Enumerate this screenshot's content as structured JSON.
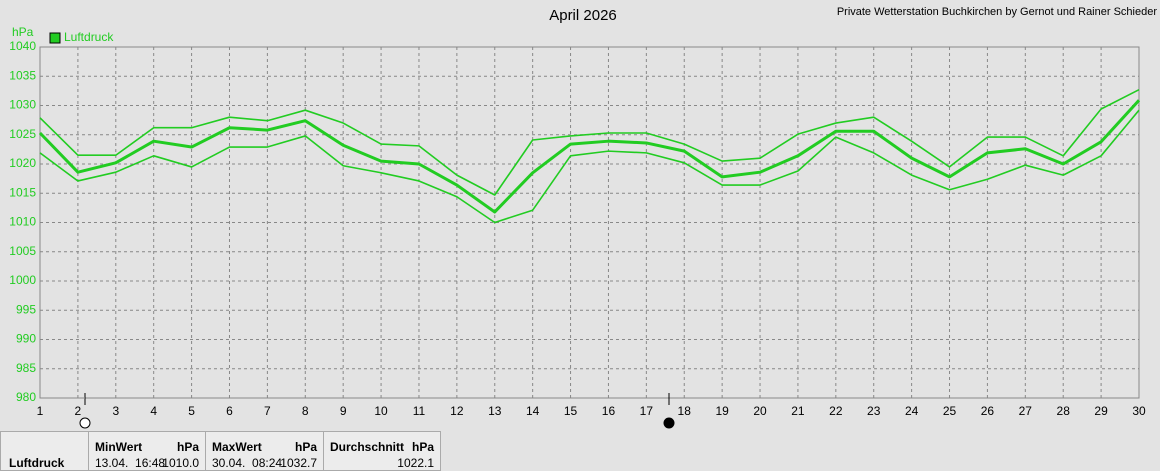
{
  "chart_data": {
    "type": "line",
    "title": "April 2026",
    "subtitle": "Private Wetterstation Buchkirchen by Gernot und Rainer Schieder",
    "y_label": "hPa",
    "x": [
      1,
      2,
      3,
      4,
      5,
      6,
      7,
      8,
      9,
      10,
      11,
      12,
      13,
      14,
      15,
      16,
      17,
      18,
      19,
      20,
      21,
      22,
      23,
      24,
      25,
      26,
      27,
      28,
      29,
      30
    ],
    "xlim": [
      1,
      30
    ],
    "xticks": [
      1,
      2,
      3,
      4,
      5,
      6,
      7,
      8,
      9,
      10,
      11,
      12,
      13,
      14,
      15,
      16,
      17,
      18,
      19,
      20,
      21,
      22,
      23,
      24,
      25,
      26,
      27,
      28,
      29,
      30
    ],
    "ylim": [
      980,
      1040
    ],
    "yticks": [
      980,
      985,
      990,
      995,
      1000,
      1005,
      1010,
      1015,
      1020,
      1025,
      1030,
      1035,
      1040
    ],
    "grid": true,
    "legend": "top-left",
    "series": [
      {
        "color": "#22cc22",
        "values": [
          1027.9,
          1021.5,
          1021.5,
          1026.2,
          1026.2,
          1028.0,
          1027.4,
          1029.2,
          1027.0,
          1023.4,
          1023.1,
          1018.1,
          1014.7,
          1024.1,
          1024.8,
          1025.3,
          1025.3,
          1023.4,
          1020.5,
          1021.0,
          1025.1,
          1027.0,
          1028.0,
          1023.9,
          1019.5,
          1024.6,
          1024.6,
          1021.4,
          1029.4,
          1032.7
        ]
      },
      {
        "name": "Luftdruck",
        "color": "#22cc22",
        "values": [
          1025.3,
          1018.6,
          1020.2,
          1023.9,
          1022.9,
          1026.2,
          1025.8,
          1027.4,
          1023.2,
          1020.5,
          1020.0,
          1016.4,
          1011.8,
          1018.5,
          1023.4,
          1023.9,
          1023.6,
          1022.2,
          1017.8,
          1018.6,
          1021.4,
          1025.6,
          1025.6,
          1021.0,
          1017.8,
          1021.9,
          1022.6,
          1020.0,
          1023.8,
          1030.9
        ]
      },
      {
        "color": "#22cc22",
        "values": [
          1021.9,
          1017.1,
          1018.6,
          1021.4,
          1019.5,
          1022.9,
          1022.9,
          1024.8,
          1019.7,
          1018.5,
          1017.1,
          1014.4,
          1010.0,
          1012.1,
          1021.4,
          1022.2,
          1021.9,
          1020.2,
          1016.4,
          1016.4,
          1018.8,
          1024.6,
          1021.9,
          1018.1,
          1015.6,
          1017.4,
          1019.8,
          1018.1,
          1021.4,
          1029.2
        ]
      }
    ]
  },
  "summary": {
    "name": "Luftdruck",
    "min": {
      "label": "MinWert",
      "unit": "hPa",
      "time": "13.04.  16:48",
      "value": "1010.0"
    },
    "max": {
      "label": "MaxWert",
      "unit": "hPa",
      "time": "30.04.  08:24",
      "value": "1032.7"
    },
    "avg": {
      "label": "Durchschnitt",
      "unit": "hPa",
      "value": "1022.1"
    }
  }
}
